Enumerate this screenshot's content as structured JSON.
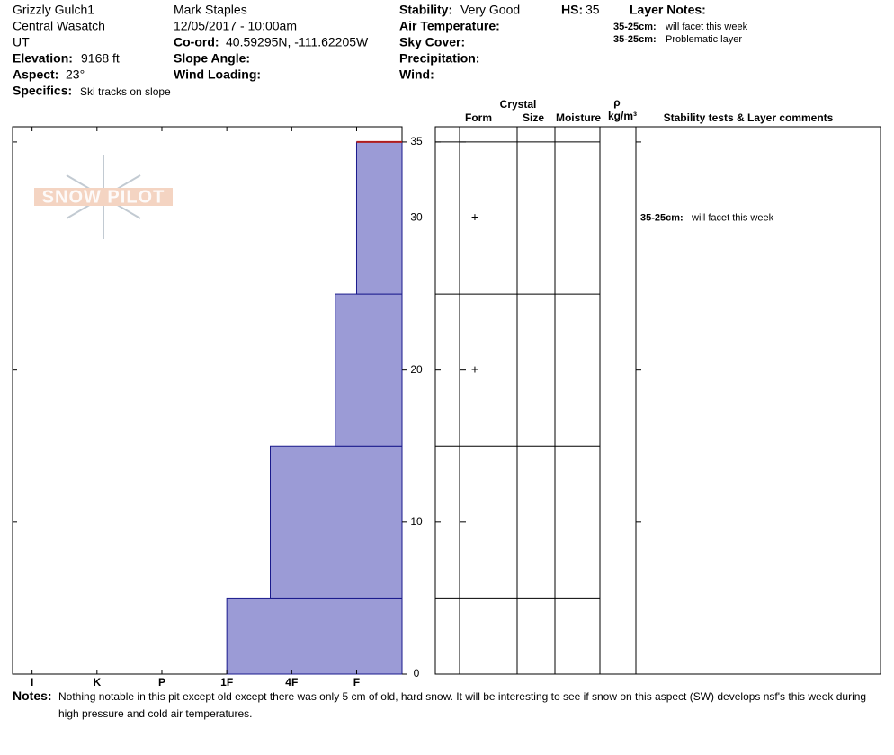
{
  "header": {
    "site": "Grizzly Gulch1",
    "range": "Central Wasatch",
    "state": "UT",
    "elevation_label": "Elevation:",
    "elevation": "9168 ft",
    "aspect_label": "Aspect:",
    "aspect": "23°",
    "specifics_label": "Specifics:",
    "specifics": "Ski tracks on slope",
    "observer": "Mark Staples",
    "datetime": "12/05/2017 - 10:00am",
    "coord_label": "Co-ord:",
    "coord": "40.59295N, -111.62205W",
    "slope_label": "Slope Angle:",
    "wind_loading_label": "Wind Loading:",
    "stability_label": "Stability:",
    "stability": "Very Good",
    "hs_label": "HS:",
    "hs": "35",
    "air_temp_label": "Air Temperature:",
    "sky_label": "Sky Cover:",
    "precip_label": "Precipitation:",
    "wind_label": "Wind:",
    "layer_notes_label": "Layer Notes:",
    "layer_notes": [
      {
        "depth": "35-25cm:",
        "text": "will facet this week"
      },
      {
        "depth": "35-25cm:",
        "text": "Problematic layer"
      }
    ]
  },
  "chart_data": {
    "type": "snow-profile",
    "logo": "SNOW PILOT",
    "layers": [
      {
        "bottom": 0,
        "top": 5,
        "hardness": 3,
        "form": null
      },
      {
        "bottom": 5,
        "top": 15,
        "hardness": 2.33,
        "form": null
      },
      {
        "bottom": 15,
        "top": 25,
        "hardness": 1.33,
        "form": "+"
      },
      {
        "bottom": 25,
        "top": 35,
        "hardness": 1,
        "form": "+"
      }
    ],
    "color": "#9b9bd6",
    "xlim": [
      6.3,
      0.3
    ],
    "xticks": [
      {
        "value": 6,
        "label": "I"
      },
      {
        "value": 5,
        "label": "K"
      },
      {
        "value": 4,
        "label": "P"
      },
      {
        "value": 3,
        "label": "1F"
      },
      {
        "value": 2,
        "label": "4F"
      },
      {
        "value": 1,
        "label": "F"
      }
    ],
    "ylim": [
      0,
      36
    ],
    "yticks": [
      0,
      10,
      20,
      30,
      35
    ],
    "columns": {
      "crystal": "Crystal",
      "form": "Form",
      "size": "Size",
      "moisture": "Moisture",
      "rho": "ρ",
      "density_unit": "kg/m³",
      "comments": "Stability tests & Layer comments"
    },
    "layer_comments": [
      {
        "depth": "35-25cm:",
        "text": "will facet this week",
        "top": 35,
        "bottom": 25
      }
    ]
  },
  "notes": {
    "label": "Notes:",
    "text": "Nothing notable in this pit except old except there was only 5 cm of old, hard snow. It will be interesting to see if snow on this aspect (SW) develops nsf's this week during high pressure and cold air temperatures."
  }
}
